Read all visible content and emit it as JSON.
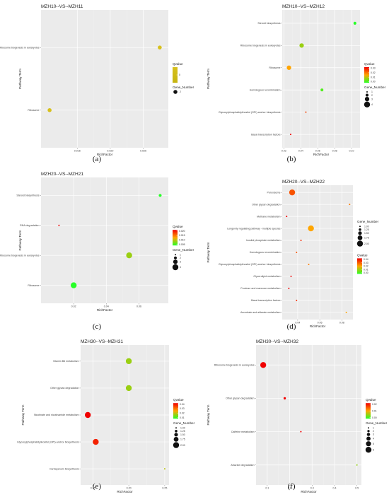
{
  "chart_data": [
    {
      "type": "scatter",
      "panel": "(a)",
      "title": "MZH10--VS--MZH11",
      "xlabel": "RichFactor",
      "ylabel": "Pathway Term",
      "categories": [
        "Ribosome biogenesis in eukaryotes",
        "Ribosome"
      ],
      "x": [
        0.0275,
        0.0108
      ],
      "qvalue": [
        0.0,
        0.0
      ],
      "gene_number": [
        2,
        2
      ],
      "xlim": [
        0.0095,
        0.0288
      ],
      "xticks": [
        0.015,
        0.02,
        0.025
      ],
      "xtick_labels": [
        "0.015",
        "0.020",
        "0.025"
      ],
      "color_legend": {
        "title": "Qvalue",
        "ticks": [
          0
        ],
        "tick_labels": [
          "0"
        ],
        "colors": [
          "#d7c01c",
          "#c6b411"
        ]
      },
      "size_legend": {
        "title": "Gene_Number",
        "values": [
          2
        ],
        "labels": [
          "2"
        ]
      }
    },
    {
      "type": "scatter",
      "panel": "(b)",
      "title": "MZH10--VS--MZH12",
      "xlabel": "RichFactor",
      "ylabel": "Pathway Term",
      "categories": [
        "Steroid biosynthesis",
        "Ribosome biogenesis in eukaryotes",
        "Ribosome",
        "Homologous recombination",
        "Glycosylphosphatidylinositol (GPI)-anchor biosynthesis",
        "Basal transcription factors"
      ],
      "x": [
        0.104,
        0.041,
        0.026,
        0.065,
        0.046,
        0.028
      ],
      "qvalue": [
        0.0,
        0.008,
        0.015,
        0.003,
        0.024,
        0.033
      ],
      "gene_number": [
        2,
        3,
        3,
        2,
        1,
        1
      ],
      "xlim": [
        0.018,
        0.11
      ],
      "xticks": [
        0.02,
        0.04,
        0.06,
        0.08,
        0.1
      ],
      "xtick_labels": [
        "0.02",
        "0.04",
        "0.06",
        "0.08",
        "0.10"
      ],
      "color_legend": {
        "title": "Qvalue",
        "ticks": [
          0.03,
          0.02,
          0.01,
          0.0
        ],
        "tick_labels": [
          "0.03",
          "0.02",
          "0.01",
          "0.00"
        ],
        "colors": [
          "#f00000",
          "#ffa500",
          "#27ff27"
        ]
      },
      "size_legend": {
        "title": "Gene_Number",
        "values": [
          1,
          2,
          3,
          4
        ],
        "labels": [
          "1",
          "2",
          "3",
          "4"
        ]
      }
    },
    {
      "type": "scatter",
      "panel": "(c)",
      "title": "MZH20--VS--MZH21",
      "xlabel": "RichFactor",
      "ylabel": "Pathway Term",
      "categories": [
        "Steroid biosynthesis",
        "RNA degradation",
        "Ribosome biogenesis in eukaryotes",
        "Ribosome"
      ],
      "x": [
        0.073,
        0.011,
        0.054,
        0.02
      ],
      "qvalue": [
        0.003,
        0.02,
        0.009,
        0.002
      ],
      "gene_number": [
        2,
        1,
        4,
        4
      ],
      "xlim": [
        0.0,
        0.078
      ],
      "xticks": [
        0.02,
        0.04,
        0.06
      ],
      "xtick_labels": [
        "0.02",
        "0.04",
        "0.06"
      ],
      "color_legend": {
        "title": "Qvalue",
        "ticks": [
          0.02,
          0.015,
          0.01,
          0.005
        ],
        "tick_labels": [
          "0.020",
          "0.015",
          "0.010",
          "0.005"
        ],
        "colors": [
          "#f00000",
          "#ffa500",
          "#27ff27"
        ]
      },
      "size_legend": {
        "title": "Gene_Number",
        "values": [
          1,
          2,
          3,
          4
        ],
        "labels": [
          "1",
          "2",
          "3",
          "4"
        ]
      }
    },
    {
      "type": "scatter",
      "panel": "(d)",
      "title": "MZH20--VS--MZH22",
      "xlabel": "RichFactor",
      "ylabel": "Pathway Term",
      "categories": [
        "Peroxisome",
        "Other glycan degradation",
        "Methane metabolism",
        "Longevity regulating pathway - multiple species",
        "Inositol phosphate metabolism",
        "Homologous recombination",
        "Glycosylphosphatidylinositol (GPI)-anchor biosynthesis",
        "Glycerolipid metabolism",
        "Fructose and mannose metabolism",
        "Basal transcription factors",
        "Ascorbate and aldarate metabolism"
      ],
      "x": [
        0.035,
        0.087,
        0.03,
        0.052,
        0.043,
        0.039,
        0.05,
        0.034,
        0.032,
        0.039,
        0.084
      ],
      "qvalue": [
        0.03,
        0.025,
        0.045,
        0.02,
        0.035,
        0.03,
        0.025,
        0.04,
        0.048,
        0.035,
        0.02
      ],
      "gene_number": [
        2,
        1,
        1,
        2,
        1,
        1,
        1,
        1,
        1,
        1,
        1
      ],
      "xlim": [
        0.026,
        0.09
      ],
      "xticks": [
        0.04,
        0.06,
        0.08
      ],
      "xtick_labels": [
        "0.04",
        "0.06",
        "0.08"
      ],
      "size_legend": {
        "title": "Gene_Number",
        "values": [
          1,
          1.25,
          1.5,
          1.75,
          2
        ],
        "labels": [
          "1.00",
          "1.25",
          "1.50",
          "1.75",
          "2.00"
        ]
      },
      "color_legend": {
        "title": "Qvalue",
        "ticks": [
          0.04,
          0.03,
          0.02,
          0.01,
          0.0
        ],
        "tick_labels": [
          "0.04",
          "0.03",
          "0.02",
          "0.01",
          "0.00"
        ],
        "colors": [
          "#f00000",
          "#ffa500",
          "#27ff27"
        ]
      }
    },
    {
      "type": "scatter",
      "panel": "(e)",
      "title": "MZH30--VS--MZH31",
      "xlabel": "RichFactor",
      "ylabel": "Pathway Term",
      "categories": [
        "Vitamin B6 metabolism",
        "Other glycan degradation",
        "Nicotinate and nicotinamide metabolism",
        "Glycosylphosphatidylinositol (GPI)-anchor biosynthesis",
        "Carbapenem biosynthesis"
      ],
      "x": [
        0.2,
        0.2,
        0.143,
        0.154,
        0.25
      ],
      "qvalue": [
        0.018,
        0.018,
        0.046,
        0.037,
        0.02
      ],
      "gene_number": [
        2,
        2,
        2,
        2,
        1
      ],
      "xlim": [
        0.133,
        0.256
      ],
      "xticks": [
        0.15,
        0.2,
        0.25
      ],
      "xtick_labels": [
        "0.15",
        "0.20",
        "0.25"
      ],
      "color_legend": {
        "title": "Qvalue",
        "ticks": [
          0.04,
          0.03,
          0.02,
          0.01
        ],
        "tick_labels": [
          "0.04",
          "0.03",
          "0.02",
          "0.01"
        ],
        "colors": [
          "#f00000",
          "#ffa500",
          "#27ff27"
        ]
      },
      "size_legend": {
        "title": "Gene_Number",
        "values": [
          1,
          1.25,
          1.5,
          1.75,
          2
        ],
        "labels": [
          "1.00",
          "1.25",
          "1.50",
          "1.75",
          "2.00"
        ]
      }
    },
    {
      "type": "scatter",
      "panel": "(f)",
      "title": "MZH30--VS--MZH32",
      "xlabel": "RichFactor",
      "ylabel": "Pathway Term",
      "categories": [
        "Ribosome biogenesis in eukaryotes",
        "Other glycan degradation",
        "Caffeine metabolism",
        "Atrazine degradation"
      ],
      "x": [
        0.082,
        0.178,
        0.25,
        0.5
      ],
      "qvalue": [
        0.025,
        0.02,
        0.025,
        0.005
      ],
      "gene_number": [
        6,
        2,
        1,
        1
      ],
      "xlim": [
        0.05,
        0.52
      ],
      "xticks": [
        0.1,
        0.2,
        0.3,
        0.4,
        0.5
      ],
      "xtick_labels": [
        "0.1",
        "0.2",
        "0.3",
        "0.4",
        "0.5"
      ],
      "color_legend": {
        "title": "Qvalue",
        "ticks": [
          0.02,
          0.01,
          0.0
        ],
        "tick_labels": [
          "0.02",
          "0.01",
          "0.00"
        ],
        "colors": [
          "#f00000",
          "#ffa500",
          "#27ff27"
        ]
      },
      "size_legend": {
        "title": "Gene_Number",
        "values": [
          1,
          2,
          3,
          4,
          5,
          6
        ],
        "labels": [
          "1",
          "2",
          "3",
          "4",
          "5",
          "6"
        ]
      }
    }
  ]
}
